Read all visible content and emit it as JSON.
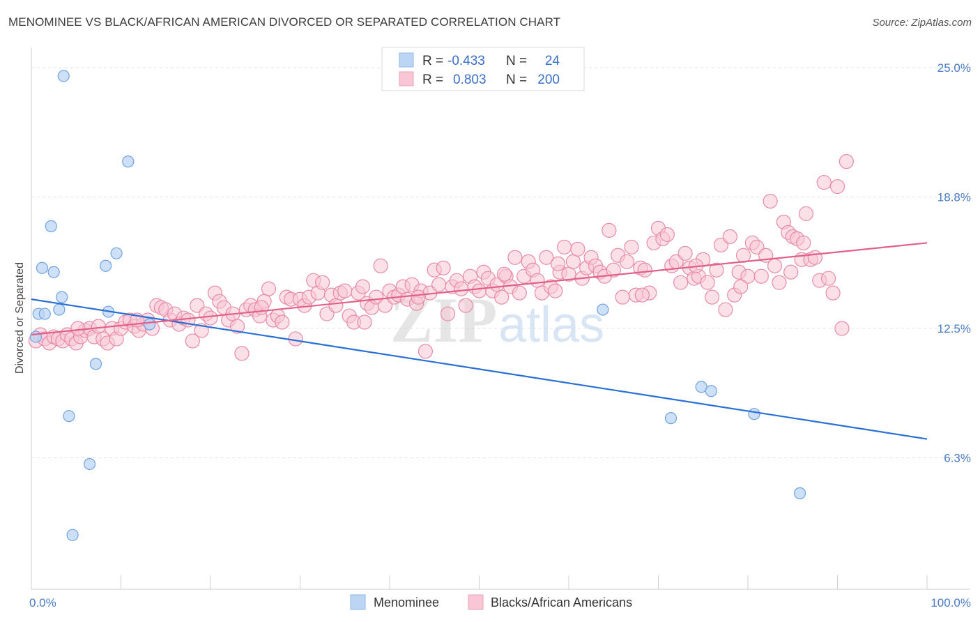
{
  "header": {
    "title": "MENOMINEE VS BLACK/AFRICAN AMERICAN DIVORCED OR SEPARATED CORRELATION CHART",
    "source": "Source: ZipAtlas.com"
  },
  "watermark": {
    "text_zip": "ZIP",
    "text_atlas": "atlas"
  },
  "legend": {
    "rows": [
      {
        "r_label": "R =",
        "r_value": "-0.433",
        "n_label": "N =",
        "n_value": "24",
        "color": "#a8c8f0"
      },
      {
        "r_label": "R =",
        "r_value": "0.803",
        "n_label": "N =",
        "n_value": "200",
        "color": "#f5b8cb"
      }
    ]
  },
  "bottom_legend": [
    {
      "label": "Menominee",
      "color": "#a8c8f0"
    },
    {
      "label": "Blacks/African Americans",
      "color": "#f5b8cb"
    }
  ],
  "chart_data": {
    "type": "scatter",
    "ylabel": "Divorced or Separated",
    "xlim": [
      0,
      100
    ],
    "ylim": [
      0,
      25.0
    ],
    "y_ticks": [
      {
        "value": 6.3,
        "label": "6.3%"
      },
      {
        "value": 12.5,
        "label": "12.5%"
      },
      {
        "value": 18.8,
        "label": "18.8%"
      },
      {
        "value": 25.0,
        "label": "25.0%"
      }
    ],
    "x_tick_labels": [
      {
        "value": 0,
        "label": "0.0%"
      },
      {
        "value": 100,
        "label": "100.0%"
      }
    ],
    "grid": true,
    "series": [
      {
        "name": "Menominee",
        "color": "#6fa3e0",
        "fill": "#bcd5f5",
        "trend": {
          "x0": 0,
          "y0": 13.9,
          "x1": 100,
          "y1": 7.2,
          "color": "#2a6fd4"
        },
        "points": [
          [
            3.6,
            24.6
          ],
          [
            10.8,
            20.5
          ],
          [
            2.2,
            17.4
          ],
          [
            9.5,
            16.1
          ],
          [
            1.2,
            15.4
          ],
          [
            8.3,
            15.5
          ],
          [
            2.5,
            15.2
          ],
          [
            3.4,
            14.0
          ],
          [
            3.1,
            13.4
          ],
          [
            0.8,
            13.2
          ],
          [
            1.5,
            13.2
          ],
          [
            8.6,
            13.3
          ],
          [
            0.5,
            12.1
          ],
          [
            13.2,
            12.7
          ],
          [
            7.2,
            10.8
          ],
          [
            4.2,
            8.3
          ],
          [
            6.5,
            6.0
          ],
          [
            4.6,
            2.6
          ],
          [
            63.8,
            13.4
          ],
          [
            74.8,
            9.7
          ],
          [
            75.9,
            9.5
          ],
          [
            71.4,
            8.2
          ],
          [
            80.7,
            8.4
          ],
          [
            85.8,
            4.6
          ]
        ]
      },
      {
        "name": "Blacks/African Americans",
        "color": "#e88aa8",
        "fill": "#f8c6d5",
        "trend": {
          "x0": 0,
          "y0": 12.2,
          "x1": 100,
          "y1": 16.6,
          "color": "#e0608a"
        },
        "points": [
          [
            0.5,
            11.9
          ],
          [
            1.0,
            12.2
          ],
          [
            1.5,
            12.0
          ],
          [
            2.0,
            11.8
          ],
          [
            2.5,
            12.1
          ],
          [
            3.0,
            12.0
          ],
          [
            3.5,
            11.9
          ],
          [
            4.0,
            12.2
          ],
          [
            4.5,
            12.0
          ],
          [
            5.0,
            11.8
          ],
          [
            5.5,
            12.1
          ],
          [
            6.0,
            12.4
          ],
          [
            6.5,
            12.5
          ],
          [
            7.0,
            12.1
          ],
          [
            7.5,
            12.6
          ],
          [
            8.0,
            12.0
          ],
          [
            8.5,
            11.8
          ],
          [
            9.0,
            12.5
          ],
          [
            9.5,
            12.0
          ],
          [
            10.0,
            12.5
          ],
          [
            10.5,
            12.8
          ],
          [
            11.0,
            12.9
          ],
          [
            11.5,
            12.6
          ],
          [
            12.0,
            12.4
          ],
          [
            12.5,
            12.7
          ],
          [
            13.0,
            12.9
          ],
          [
            13.5,
            12.5
          ],
          [
            14.0,
            13.6
          ],
          [
            14.5,
            13.5
          ],
          [
            15.0,
            13.4
          ],
          [
            15.5,
            12.9
          ],
          [
            16.0,
            13.2
          ],
          [
            16.5,
            12.7
          ],
          [
            17.0,
            13.0
          ],
          [
            17.5,
            12.9
          ],
          [
            18.0,
            11.9
          ],
          [
            18.5,
            13.6
          ],
          [
            19.0,
            12.4
          ],
          [
            19.5,
            13.2
          ],
          [
            20.0,
            13.0
          ],
          [
            20.5,
            14.2
          ],
          [
            21.0,
            13.8
          ],
          [
            21.5,
            13.5
          ],
          [
            22.0,
            12.9
          ],
          [
            22.5,
            13.2
          ],
          [
            23.0,
            12.6
          ],
          [
            23.5,
            11.3
          ],
          [
            24.0,
            13.4
          ],
          [
            24.5,
            13.6
          ],
          [
            25.0,
            13.4
          ],
          [
            25.5,
            13.1
          ],
          [
            26.0,
            13.8
          ],
          [
            26.5,
            14.4
          ],
          [
            27.0,
            12.9
          ],
          [
            27.5,
            13.1
          ],
          [
            28.0,
            12.8
          ],
          [
            28.5,
            14.0
          ],
          [
            29.0,
            13.9
          ],
          [
            29.5,
            12.0
          ],
          [
            30.0,
            13.9
          ],
          [
            30.5,
            13.6
          ],
          [
            31.0,
            14.0
          ],
          [
            31.5,
            14.8
          ],
          [
            32.0,
            14.2
          ],
          [
            32.5,
            14.7
          ],
          [
            33.0,
            13.2
          ],
          [
            33.5,
            14.1
          ],
          [
            34.0,
            13.6
          ],
          [
            34.5,
            14.2
          ],
          [
            35.0,
            14.3
          ],
          [
            35.5,
            13.1
          ],
          [
            36.0,
            12.8
          ],
          [
            36.5,
            14.2
          ],
          [
            37.0,
            14.5
          ],
          [
            37.5,
            13.7
          ],
          [
            38.0,
            13.5
          ],
          [
            38.5,
            14.0
          ],
          [
            39.0,
            15.5
          ],
          [
            39.5,
            13.6
          ],
          [
            40.0,
            14.3
          ],
          [
            40.5,
            14.0
          ],
          [
            41.0,
            14.1
          ],
          [
            41.5,
            14.5
          ],
          [
            42.0,
            13.9
          ],
          [
            42.5,
            14.6
          ],
          [
            43.0,
            13.7
          ],
          [
            43.5,
            14.3
          ],
          [
            44.0,
            11.4
          ],
          [
            44.5,
            14.2
          ],
          [
            45.0,
            15.3
          ],
          [
            45.5,
            14.6
          ],
          [
            46.0,
            15.4
          ],
          [
            46.5,
            13.2
          ],
          [
            47.0,
            14.5
          ],
          [
            47.5,
            14.8
          ],
          [
            48.0,
            14.4
          ],
          [
            48.5,
            13.6
          ],
          [
            49.0,
            15.0
          ],
          [
            49.5,
            14.5
          ],
          [
            50.0,
            14.3
          ],
          [
            50.5,
            15.2
          ],
          [
            51.0,
            14.9
          ],
          [
            51.5,
            14.3
          ],
          [
            52.0,
            14.6
          ],
          [
            52.5,
            14.0
          ],
          [
            53.0,
            15.0
          ],
          [
            53.5,
            14.5
          ],
          [
            54.0,
            15.9
          ],
          [
            54.5,
            14.2
          ],
          [
            55.0,
            15.0
          ],
          [
            55.5,
            15.7
          ],
          [
            56.0,
            15.3
          ],
          [
            56.5,
            14.8
          ],
          [
            57.0,
            14.2
          ],
          [
            57.5,
            15.9
          ],
          [
            58.0,
            14.5
          ],
          [
            58.5,
            14.3
          ],
          [
            59.0,
            15.2
          ],
          [
            59.5,
            16.4
          ],
          [
            60.0,
            15.1
          ],
          [
            60.5,
            15.7
          ],
          [
            61.0,
            16.3
          ],
          [
            61.5,
            14.9
          ],
          [
            62.0,
            15.4
          ],
          [
            62.5,
            15.9
          ],
          [
            63.0,
            15.5
          ],
          [
            63.5,
            15.2
          ],
          [
            64.0,
            15.0
          ],
          [
            64.5,
            17.2
          ],
          [
            65.0,
            15.3
          ],
          [
            65.5,
            16.0
          ],
          [
            66.0,
            14.0
          ],
          [
            66.5,
            15.7
          ],
          [
            67.0,
            16.4
          ],
          [
            67.5,
            14.1
          ],
          [
            68.0,
            15.4
          ],
          [
            68.5,
            15.3
          ],
          [
            69.0,
            14.2
          ],
          [
            69.5,
            16.6
          ],
          [
            70.0,
            17.3
          ],
          [
            70.5,
            16.8
          ],
          [
            71.0,
            17.0
          ],
          [
            71.5,
            15.5
          ],
          [
            72.0,
            15.7
          ],
          [
            72.5,
            14.7
          ],
          [
            73.0,
            16.1
          ],
          [
            73.5,
            15.4
          ],
          [
            74.0,
            14.9
          ],
          [
            74.5,
            15.0
          ],
          [
            75.0,
            15.8
          ],
          [
            75.5,
            14.7
          ],
          [
            76.0,
            14.0
          ],
          [
            76.5,
            15.3
          ],
          [
            77.0,
            16.5
          ],
          [
            77.5,
            13.4
          ],
          [
            78.0,
            16.9
          ],
          [
            78.5,
            14.1
          ],
          [
            79.0,
            15.2
          ],
          [
            79.5,
            16.0
          ],
          [
            80.0,
            15.0
          ],
          [
            80.5,
            16.6
          ],
          [
            81.0,
            16.4
          ],
          [
            81.5,
            15.0
          ],
          [
            82.0,
            16.0
          ],
          [
            82.5,
            18.6
          ],
          [
            83.0,
            15.5
          ],
          [
            83.5,
            14.7
          ],
          [
            84.0,
            17.6
          ],
          [
            84.5,
            17.1
          ],
          [
            85.0,
            16.9
          ],
          [
            85.5,
            16.8
          ],
          [
            86.0,
            15.8
          ],
          [
            86.5,
            18.0
          ],
          [
            87.0,
            15.8
          ],
          [
            87.5,
            15.9
          ],
          [
            88.0,
            14.8
          ],
          [
            88.5,
            19.5
          ],
          [
            89.0,
            14.9
          ],
          [
            89.5,
            14.2
          ],
          [
            90.0,
            19.3
          ],
          [
            90.5,
            12.5
          ],
          [
            91.0,
            20.5
          ],
          [
            11.8,
            12.9
          ],
          [
            25.7,
            13.5
          ],
          [
            37.2,
            12.8
          ],
          [
            43.2,
            14.0
          ],
          [
            52.8,
            15.1
          ],
          [
            58.8,
            15.6
          ],
          [
            68.2,
            14.1
          ],
          [
            74.2,
            15.5
          ],
          [
            79.2,
            14.5
          ],
          [
            84.8,
            15.2
          ],
          [
            86.2,
            16.6
          ],
          [
            5.2,
            12.5
          ]
        ]
      }
    ]
  }
}
